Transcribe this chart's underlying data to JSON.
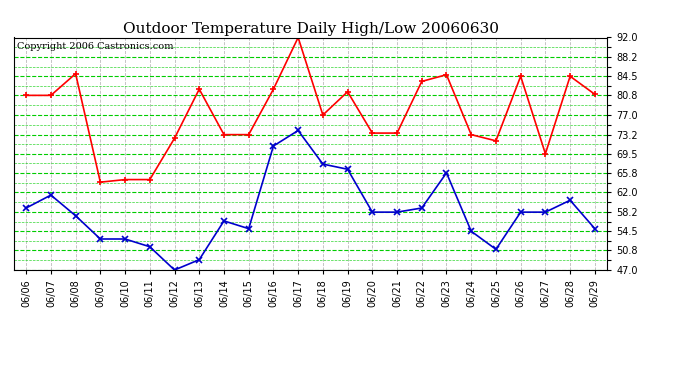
{
  "title": "Outdoor Temperature Daily High/Low 20060630",
  "copyright": "Copyright 2006 Castronics.com",
  "dates": [
    "06/06",
    "06/07",
    "06/08",
    "06/09",
    "06/10",
    "06/11",
    "06/12",
    "06/13",
    "06/14",
    "06/15",
    "06/16",
    "06/17",
    "06/18",
    "06/19",
    "06/20",
    "06/21",
    "06/22",
    "06/23",
    "06/24",
    "06/25",
    "06/26",
    "06/27",
    "06/28",
    "06/29"
  ],
  "high": [
    80.8,
    80.8,
    85.0,
    64.0,
    64.5,
    64.5,
    72.5,
    82.0,
    73.2,
    73.2,
    82.0,
    92.0,
    77.0,
    81.5,
    73.5,
    73.5,
    83.5,
    84.8,
    73.2,
    72.0,
    84.5,
    69.5,
    84.5,
    81.0
  ],
  "low": [
    59.0,
    61.5,
    57.5,
    53.0,
    53.0,
    51.5,
    47.0,
    49.0,
    56.5,
    55.0,
    71.0,
    74.0,
    67.5,
    66.5,
    58.2,
    58.2,
    59.0,
    65.8,
    54.5,
    51.0,
    58.2,
    58.2,
    60.5,
    55.0
  ],
  "ylim": [
    47.0,
    92.0
  ],
  "yticks": [
    47.0,
    50.8,
    54.5,
    58.2,
    62.0,
    65.8,
    69.5,
    73.2,
    77.0,
    80.8,
    84.5,
    88.2,
    92.0
  ],
  "high_color": "#ff0000",
  "low_color": "#0000cc",
  "bg_color": "#ffffff",
  "title_fontsize": 11,
  "copyright_fontsize": 7,
  "tick_fontsize": 7,
  "ylabel_fontsize": 7
}
